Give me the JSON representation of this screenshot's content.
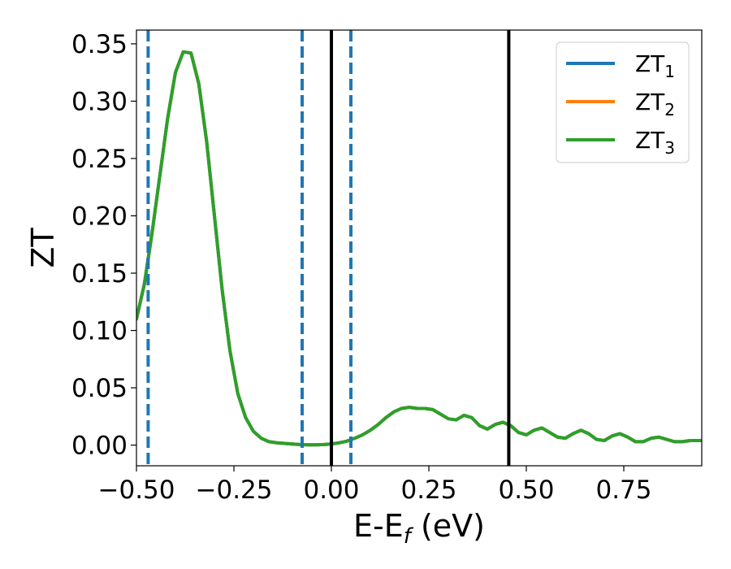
{
  "chart_data": {
    "type": "line",
    "xlabel": {
      "main": "E-E",
      "sub": "f",
      "suffix": " (eV)"
    },
    "ylabel": "ZT",
    "xlim": [
      -0.5,
      0.95
    ],
    "ylim": [
      -0.018,
      0.362
    ],
    "x_ticks": [
      -0.5,
      -0.25,
      0.0,
      0.25,
      0.5,
      0.75
    ],
    "x_tick_labels": [
      "−0.50",
      "−0.25",
      "0.00",
      "0.25",
      "0.50",
      "0.75"
    ],
    "y_ticks": [
      0.0,
      0.05,
      0.1,
      0.15,
      0.2,
      0.25,
      0.3,
      0.35
    ],
    "y_tick_labels": [
      "0.00",
      "0.05",
      "0.10",
      "0.15",
      "0.20",
      "0.25",
      "0.30",
      "0.35"
    ],
    "grid": false,
    "legend_position": "top-right",
    "x": [
      -0.5,
      -0.48,
      -0.46,
      -0.44,
      -0.42,
      -0.4,
      -0.38,
      -0.36,
      -0.34,
      -0.32,
      -0.3,
      -0.28,
      -0.26,
      -0.24,
      -0.22,
      -0.2,
      -0.18,
      -0.16,
      -0.14,
      -0.12,
      -0.1,
      -0.08,
      -0.06,
      -0.04,
      -0.02,
      0.0,
      0.02,
      0.04,
      0.06,
      0.08,
      0.1,
      0.12,
      0.14,
      0.16,
      0.18,
      0.2,
      0.22,
      0.24,
      0.26,
      0.28,
      0.3,
      0.32,
      0.34,
      0.36,
      0.38,
      0.4,
      0.42,
      0.44,
      0.46,
      0.48,
      0.5,
      0.52,
      0.54,
      0.56,
      0.58,
      0.6,
      0.62,
      0.64,
      0.66,
      0.68,
      0.7,
      0.72,
      0.74,
      0.76,
      0.78,
      0.8,
      0.82,
      0.84,
      0.86,
      0.88,
      0.9,
      0.92,
      0.95
    ],
    "series": [
      {
        "name": "ZT",
        "sub": "1",
        "color": "#1f77b4",
        "values": [
          0.11,
          0.14,
          0.185,
          0.235,
          0.285,
          0.325,
          0.343,
          0.342,
          0.315,
          0.265,
          0.2,
          0.135,
          0.082,
          0.045,
          0.024,
          0.012,
          0.006,
          0.003,
          0.002,
          0.0015,
          0.001,
          0.0005,
          0.0003,
          0.0003,
          0.0005,
          0.001,
          0.002,
          0.0035,
          0.006,
          0.009,
          0.013,
          0.018,
          0.024,
          0.029,
          0.032,
          0.033,
          0.032,
          0.032,
          0.031,
          0.027,
          0.023,
          0.022,
          0.026,
          0.024,
          0.017,
          0.014,
          0.018,
          0.02,
          0.017,
          0.011,
          0.009,
          0.013,
          0.015,
          0.011,
          0.007,
          0.006,
          0.01,
          0.013,
          0.01,
          0.005,
          0.004,
          0.008,
          0.01,
          0.007,
          0.003,
          0.003,
          0.006,
          0.007,
          0.005,
          0.003,
          0.003,
          0.004,
          0.004
        ]
      },
      {
        "name": "ZT",
        "sub": "2",
        "color": "#ff7f0e",
        "values": [
          0.11,
          0.14,
          0.185,
          0.235,
          0.285,
          0.325,
          0.343,
          0.342,
          0.315,
          0.265,
          0.2,
          0.135,
          0.082,
          0.045,
          0.024,
          0.012,
          0.006,
          0.003,
          0.002,
          0.0015,
          0.001,
          0.0005,
          0.0003,
          0.0003,
          0.0005,
          0.001,
          0.002,
          0.0035,
          0.006,
          0.009,
          0.013,
          0.018,
          0.024,
          0.029,
          0.032,
          0.033,
          0.032,
          0.032,
          0.031,
          0.027,
          0.023,
          0.022,
          0.026,
          0.024,
          0.017,
          0.014,
          0.018,
          0.02,
          0.017,
          0.011,
          0.009,
          0.013,
          0.015,
          0.011,
          0.007,
          0.006,
          0.01,
          0.013,
          0.01,
          0.005,
          0.004,
          0.008,
          0.01,
          0.007,
          0.003,
          0.003,
          0.006,
          0.007,
          0.005,
          0.003,
          0.003,
          0.004,
          0.004
        ]
      },
      {
        "name": "ZT",
        "sub": "3",
        "color": "#2ca02c",
        "values": [
          0.11,
          0.14,
          0.185,
          0.235,
          0.285,
          0.325,
          0.343,
          0.342,
          0.315,
          0.265,
          0.2,
          0.135,
          0.082,
          0.045,
          0.024,
          0.012,
          0.006,
          0.003,
          0.002,
          0.0015,
          0.001,
          0.0005,
          0.0003,
          0.0003,
          0.0005,
          0.001,
          0.002,
          0.0035,
          0.006,
          0.009,
          0.013,
          0.018,
          0.024,
          0.029,
          0.032,
          0.033,
          0.032,
          0.032,
          0.031,
          0.027,
          0.023,
          0.022,
          0.026,
          0.024,
          0.017,
          0.014,
          0.018,
          0.02,
          0.017,
          0.011,
          0.009,
          0.013,
          0.015,
          0.011,
          0.007,
          0.006,
          0.01,
          0.013,
          0.01,
          0.005,
          0.004,
          0.008,
          0.01,
          0.007,
          0.003,
          0.003,
          0.006,
          0.007,
          0.005,
          0.003,
          0.003,
          0.004,
          0.004
        ]
      }
    ],
    "vlines": [
      {
        "x": -0.47,
        "style": "dashed",
        "color": "#1f77b4"
      },
      {
        "x": -0.075,
        "style": "dashed",
        "color": "#1f77b4"
      },
      {
        "x": 0.05,
        "style": "dashed",
        "color": "#1f77b4"
      },
      {
        "x": 0.0,
        "style": "solid",
        "color": "#000000"
      },
      {
        "x": 0.455,
        "style": "solid",
        "color": "#000000"
      }
    ]
  }
}
